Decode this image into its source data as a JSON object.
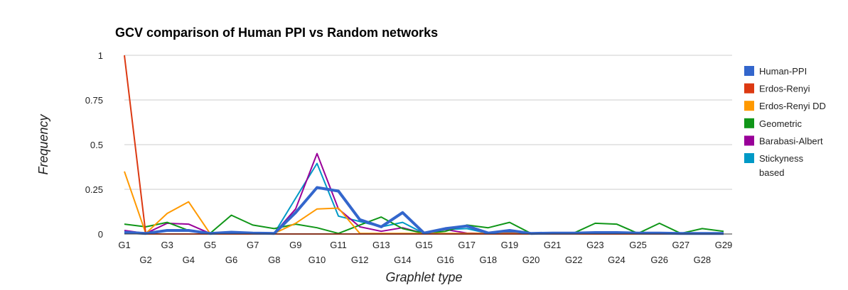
{
  "chart_data": {
    "type": "line",
    "title": "GCV comparison of Human PPI vs Random networks",
    "xlabel": "Graphlet type",
    "ylabel": "Frequency",
    "ylim": [
      0,
      1
    ],
    "yticks": [
      "0",
      "0.25",
      "0.5",
      "0.75",
      "1"
    ],
    "yticks_values": [
      0,
      0.25,
      0.5,
      0.75,
      1
    ],
    "grid": true,
    "legend_position": "right",
    "categories": [
      "G1",
      "G2",
      "G3",
      "G4",
      "G5",
      "G6",
      "G7",
      "G8",
      "G9",
      "G10",
      "G11",
      "G12",
      "G13",
      "G14",
      "G15",
      "G16",
      "G17",
      "G18",
      "G19",
      "G20",
      "G21",
      "G22",
      "G23",
      "G24",
      "G25",
      "G26",
      "G27",
      "G28",
      "G29"
    ],
    "series": [
      {
        "name": "Human-PPI",
        "color": "#3366cc",
        "width": 4,
        "values": [
          0.01,
          0.003,
          0.02,
          0.02,
          0.003,
          0.01,
          0.005,
          0.003,
          0.12,
          0.26,
          0.24,
          0.08,
          0.04,
          0.12,
          0.005,
          0.03,
          0.045,
          0.005,
          0.02,
          0.003,
          0.005,
          0.005,
          0.008,
          0.008,
          0.005,
          0.005,
          0.003,
          0.003,
          0.003
        ]
      },
      {
        "name": "Erdos-Renyi",
        "color": "#dc3912",
        "width": 2,
        "values": [
          1.0,
          0.0,
          0.0,
          0.0,
          0.0,
          0.0,
          0.0,
          0.0,
          0.0,
          0.0,
          0.0,
          0.0,
          0.0,
          0.0,
          0.0,
          0.0,
          0.0,
          0.0,
          0.0,
          0.0,
          0.0,
          0.0,
          0.0,
          0.0,
          0.0,
          0.0,
          0.0,
          0.0,
          0.0
        ]
      },
      {
        "name": "Erdos-Renyi DD",
        "color": "#ff9900",
        "width": 2,
        "values": [
          0.35,
          0.003,
          0.115,
          0.18,
          0.003,
          0.003,
          0.003,
          0.003,
          0.06,
          0.14,
          0.145,
          0.003,
          0.003,
          0.003,
          0.003,
          0.003,
          0.003,
          0.003,
          0.003,
          0.003,
          0.003,
          0.003,
          0.003,
          0.003,
          0.003,
          0.003,
          0.003,
          0.003,
          0.003
        ]
      },
      {
        "name": "Geometric",
        "color": "#109618",
        "width": 2,
        "values": [
          0.055,
          0.04,
          0.065,
          0.02,
          0.003,
          0.105,
          0.05,
          0.03,
          0.055,
          0.035,
          0.003,
          0.05,
          0.095,
          0.03,
          0.003,
          0.015,
          0.05,
          0.035,
          0.065,
          0.003,
          0.005,
          0.005,
          0.06,
          0.055,
          0.003,
          0.06,
          0.003,
          0.03,
          0.015
        ]
      },
      {
        "name": "Barabasi-Albert",
        "color": "#990099",
        "width": 2,
        "values": [
          0.02,
          0.003,
          0.06,
          0.055,
          0.003,
          0.005,
          0.003,
          0.003,
          0.14,
          0.45,
          0.14,
          0.04,
          0.015,
          0.035,
          0.003,
          0.025,
          0.005,
          0.003,
          0.005,
          0.003,
          0.003,
          0.003,
          0.003,
          0.003,
          0.003,
          0.003,
          0.003,
          0.003,
          0.003
        ]
      },
      {
        "name": "Stickyness based",
        "color": "#0099c6",
        "width": 2,
        "values": [
          0.01,
          0.003,
          0.02,
          0.02,
          0.003,
          0.005,
          0.003,
          0.003,
          0.2,
          0.395,
          0.1,
          0.07,
          0.04,
          0.065,
          0.003,
          0.025,
          0.03,
          0.003,
          0.01,
          0.003,
          0.003,
          0.003,
          0.005,
          0.005,
          0.003,
          0.005,
          0.003,
          0.003,
          0.003
        ]
      }
    ]
  }
}
